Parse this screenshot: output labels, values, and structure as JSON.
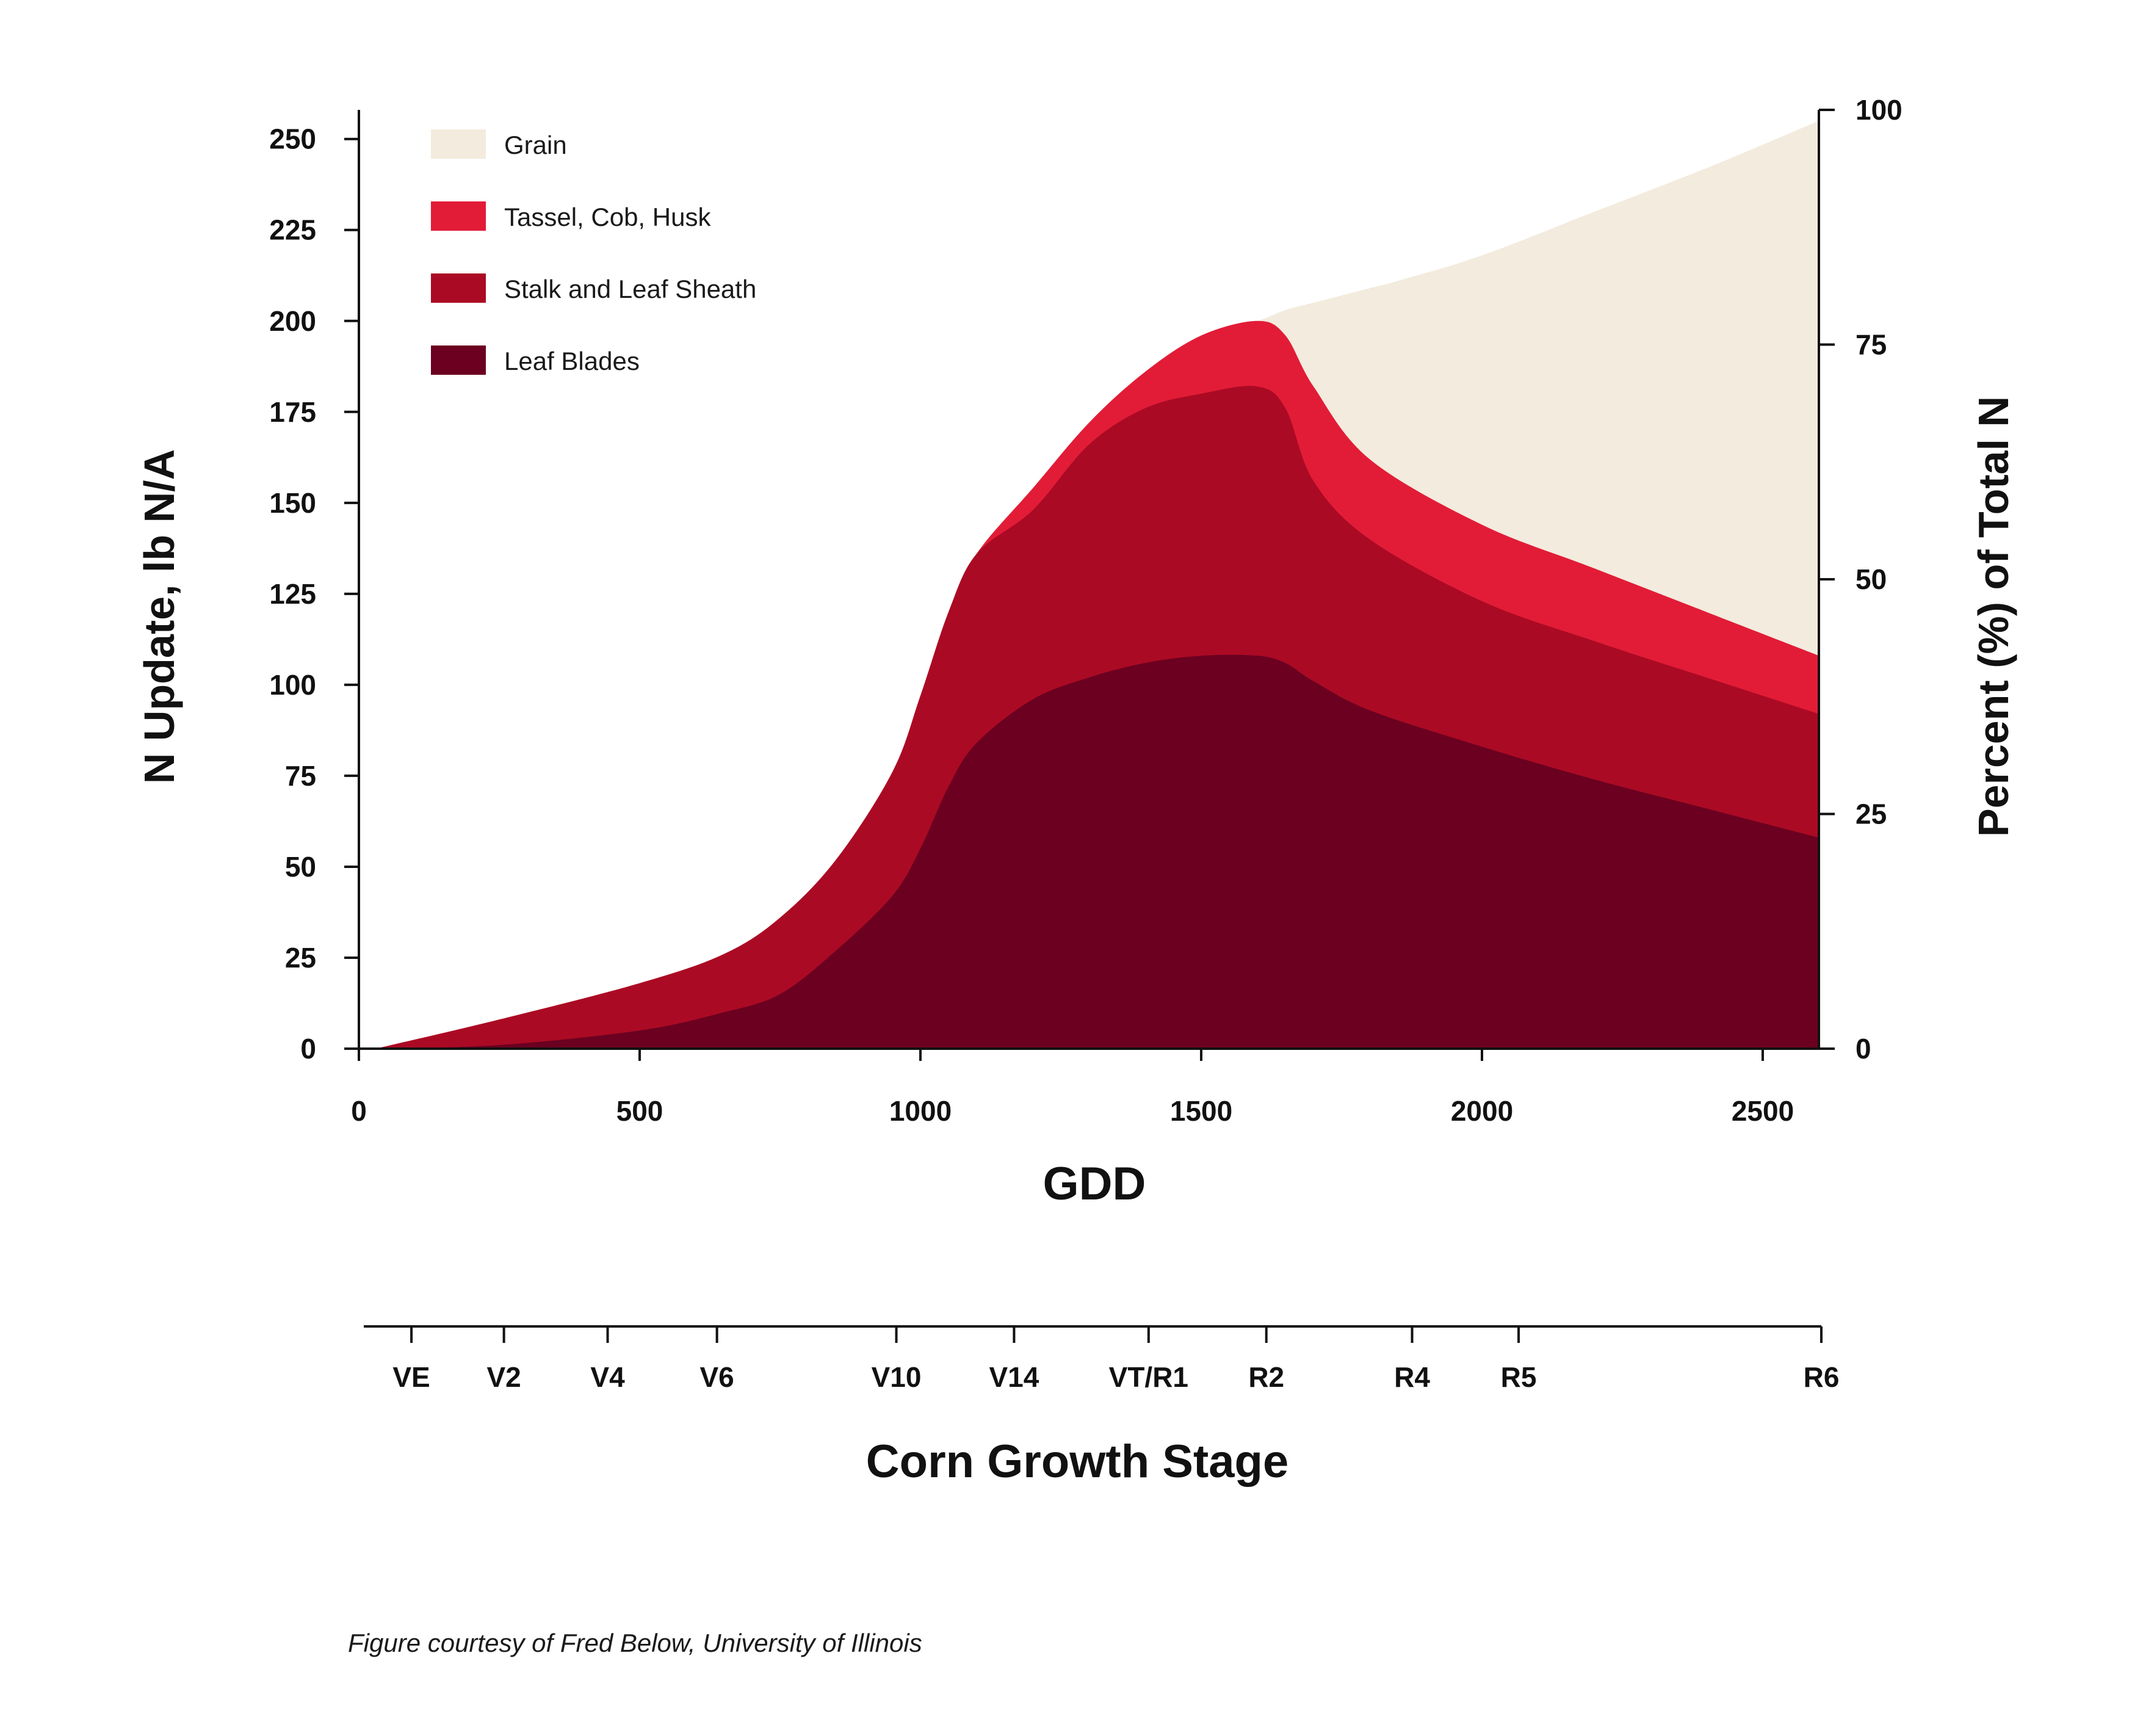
{
  "chart_data": {
    "type": "area",
    "stacked": true,
    "xlabel": "GDD",
    "ylabel": "N Update, lb N/A",
    "y2label": "Percent (%) of Total N",
    "xlim": [
      0,
      2600
    ],
    "ylim": [
      0,
      258
    ],
    "y2lim": [
      0,
      100
    ],
    "xticks": [
      0,
      500,
      1000,
      1500,
      2000,
      2500
    ],
    "yticks": [
      0,
      25,
      50,
      75,
      100,
      125,
      150,
      175,
      200,
      225,
      250
    ],
    "y2ticks": [
      0,
      25,
      50,
      75,
      100
    ],
    "grid": false,
    "legend_position": "top-left",
    "series": [
      {
        "name": "Leaf Blades",
        "color": "#6b0020",
        "x": [
          30,
          250,
          500,
          650,
          750,
          850,
          950,
          1000,
          1050,
          1100,
          1200,
          1300,
          1400,
          1500,
          1600,
          1650,
          1700,
          1800,
          2000,
          2200,
          2400,
          2600
        ],
        "y": [
          0,
          1,
          5,
          10,
          15,
          27,
          42,
          55,
          72,
          84,
          96,
          102,
          106,
          108,
          108,
          106,
          101,
          93,
          83,
          74,
          66,
          58
        ]
      },
      {
        "name": "Stalk and Leaf Sheath",
        "color": "#ab0a24",
        "x": [
          30,
          250,
          500,
          650,
          750,
          850,
          950,
          1000,
          1050,
          1100,
          1200,
          1300,
          1400,
          1500,
          1600,
          1650,
          1700,
          1800,
          2000,
          2200,
          2400,
          2600
        ],
        "y": [
          0,
          8,
          18,
          26,
          36,
          52,
          76,
          97,
          120,
          136,
          148,
          166,
          176,
          180,
          182,
          176,
          156,
          140,
          123,
          112,
          102,
          92
        ]
      },
      {
        "name": "Tassel, Cob, Husk",
        "color": "#e21c37",
        "x": [
          30,
          250,
          500,
          650,
          750,
          850,
          950,
          1000,
          1050,
          1100,
          1200,
          1300,
          1400,
          1500,
          1600,
          1650,
          1700,
          1800,
          2000,
          2200,
          2400,
          2600
        ],
        "y": [
          0,
          8,
          18,
          26,
          36,
          52,
          76,
          97,
          120,
          136,
          154,
          172,
          186,
          196,
          200,
          196,
          182,
          162,
          144,
          132,
          120,
          108
        ]
      },
      {
        "name": "Grain",
        "color": "#f3ebdd",
        "x": [
          30,
          250,
          500,
          650,
          750,
          850,
          950,
          1000,
          1050,
          1100,
          1200,
          1300,
          1400,
          1500,
          1600,
          1650,
          1700,
          1800,
          1850,
          2000,
          2200,
          2400,
          2600
        ],
        "y": [
          0,
          8,
          18,
          26,
          36,
          52,
          76,
          97,
          120,
          136,
          154,
          172,
          186,
          196,
          200,
          203,
          205,
          209,
          211,
          218,
          230,
          242,
          255
        ]
      }
    ],
    "growth_stage_axis": {
      "title": "Corn Growth Stage",
      "stages": [
        {
          "label": "VE",
          "gdd": 85
        },
        {
          "label": "V2",
          "gdd": 250
        },
        {
          "label": "V4",
          "gdd": 435
        },
        {
          "label": "V6",
          "gdd": 630
        },
        {
          "label": "V10",
          "gdd": 950
        },
        {
          "label": "V14",
          "gdd": 1160
        },
        {
          "label": "VT/R1",
          "gdd": 1400
        },
        {
          "label": "R2",
          "gdd": 1610
        },
        {
          "label": "R4",
          "gdd": 1870
        },
        {
          "label": "R5",
          "gdd": 2060
        },
        {
          "label": "R6",
          "gdd": 2600
        }
      ]
    }
  },
  "legend": [
    {
      "label": "Grain",
      "color": "#f3ebdd"
    },
    {
      "label": "Tassel, Cob, Husk",
      "color": "#e21c37"
    },
    {
      "label": "Stalk and Leaf Sheath",
      "color": "#ab0a24"
    },
    {
      "label": "Leaf Blades",
      "color": "#6b0020"
    }
  ],
  "caption": "Figure courtesy of Fred Below, University of Illinois"
}
